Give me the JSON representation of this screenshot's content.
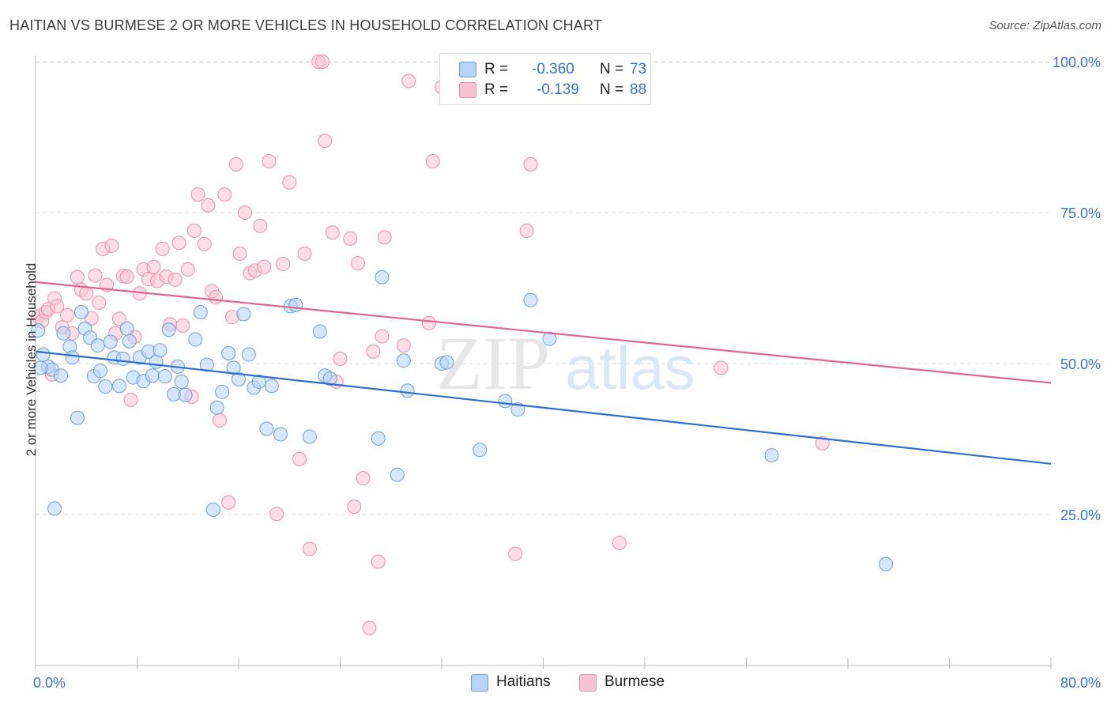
{
  "title": "HAITIAN VS BURMESE 2 OR MORE VEHICLES IN HOUSEHOLD CORRELATION CHART",
  "source": "Source: ZipAtlas.com",
  "watermark": {
    "zip": "ZIP",
    "atlas": "atlas"
  },
  "colors": {
    "haitians_fill": "#b7d3f5",
    "haitians_stroke": "#6d9fd9",
    "haitians_line": "#2f6fd0",
    "burmese_fill": "#f7c2d1",
    "burmese_stroke": "#e990ab",
    "burmese_line": "#e0658d",
    "tick_label": "#3a74c8",
    "grid": "#dddddd"
  },
  "legend_top": {
    "rows": [
      {
        "r_label": "R =",
        "r_value": "-0.360",
        "n_label": "N =",
        "n_value": "73"
      },
      {
        "r_label": "R =",
        "r_value": "-0.139",
        "n_label": "N =",
        "n_value": "88"
      }
    ]
  },
  "legend_bottom": {
    "haitians": "Haitians",
    "burmese": "Burmese"
  },
  "chart_data": {
    "type": "scatter",
    "title": "HAITIAN VS BURMESE 2 OR MORE VEHICLES IN HOUSEHOLD CORRELATION CHART",
    "xlabel": "",
    "ylabel": "2 or more Vehicles in Household",
    "xlim": [
      0,
      80
    ],
    "ylim": [
      0,
      105
    ],
    "x_tick_labels": [
      "0.0%",
      "80.0%"
    ],
    "y_ticks": [
      25,
      50,
      75,
      100
    ],
    "y_tick_labels": [
      "25.0%",
      "50.0%",
      "75.0%",
      "100.0%"
    ],
    "grid": true,
    "series": [
      {
        "name": "Haitians",
        "r": -0.36,
        "n": 73,
        "trend": {
          "x": [
            0,
            80
          ],
          "y": [
            52.0,
            33.4
          ]
        },
        "points": [
          [
            0.2,
            55.5
          ],
          [
            0.6,
            51.5
          ],
          [
            1.0,
            49.5
          ],
          [
            1.3,
            49.0
          ],
          [
            2.0,
            48.0
          ],
          [
            2.2,
            55.0
          ],
          [
            2.7,
            52.8
          ],
          [
            2.9,
            51.0
          ],
          [
            3.3,
            41.0
          ],
          [
            3.6,
            58.5
          ],
          [
            3.9,
            55.8
          ],
          [
            4.3,
            54.3
          ],
          [
            4.6,
            47.9
          ],
          [
            4.9,
            53.0
          ],
          [
            5.1,
            48.8
          ],
          [
            5.5,
            46.2
          ],
          [
            5.9,
            53.6
          ],
          [
            6.2,
            51.0
          ],
          [
            6.6,
            46.3
          ],
          [
            7.2,
            55.8
          ],
          [
            7.4,
            53.7
          ],
          [
            7.7,
            47.7
          ],
          [
            8.2,
            51.0
          ],
          [
            8.5,
            47.1
          ],
          [
            8.9,
            52.0
          ],
          [
            9.2,
            48.0
          ],
          [
            9.5,
            50.3
          ],
          [
            9.8,
            52.2
          ],
          [
            10.2,
            47.9
          ],
          [
            10.5,
            55.6
          ],
          [
            10.9,
            44.9
          ],
          [
            11.2,
            49.5
          ],
          [
            11.5,
            47.0
          ],
          [
            11.8,
            44.8
          ],
          [
            12.6,
            54.0
          ],
          [
            13.0,
            58.5
          ],
          [
            13.5,
            49.8
          ],
          [
            14.3,
            42.7
          ],
          [
            14.7,
            45.3
          ],
          [
            15.2,
            51.7
          ],
          [
            15.6,
            49.3
          ],
          [
            16.0,
            47.4
          ],
          [
            16.4,
            58.2
          ],
          [
            16.8,
            51.5
          ],
          [
            17.2,
            46.0
          ],
          [
            17.6,
            47.0
          ],
          [
            18.2,
            39.2
          ],
          [
            18.6,
            46.3
          ],
          [
            19.3,
            38.3
          ],
          [
            20.1,
            59.5
          ],
          [
            20.5,
            59.7
          ],
          [
            21.6,
            37.9
          ],
          [
            22.4,
            55.3
          ],
          [
            22.8,
            48.0
          ],
          [
            23.2,
            47.5
          ],
          [
            27.0,
            37.6
          ],
          [
            27.3,
            64.3
          ],
          [
            28.5,
            31.6
          ],
          [
            29.0,
            50.5
          ],
          [
            29.3,
            45.5
          ],
          [
            32.0,
            50.0
          ],
          [
            32.4,
            50.2
          ],
          [
            35.0,
            35.7
          ],
          [
            37.0,
            43.8
          ],
          [
            38.0,
            42.4
          ],
          [
            39.0,
            60.5
          ],
          [
            40.5,
            54.1
          ],
          [
            58.0,
            34.8
          ],
          [
            67.0,
            16.8
          ],
          [
            1.5,
            26.0
          ],
          [
            14.0,
            25.8
          ],
          [
            0.4,
            49.3
          ],
          [
            6.9,
            50.8
          ]
        ]
      },
      {
        "name": "Burmese",
        "r": -0.139,
        "n": 88,
        "trend": {
          "x": [
            0,
            80
          ],
          "y": [
            63.5,
            46.8
          ]
        },
        "points": [
          [
            0.2,
            57.8
          ],
          [
            0.5,
            57.0
          ],
          [
            0.8,
            58.5
          ],
          [
            1.0,
            59.0
          ],
          [
            1.3,
            48.2
          ],
          [
            1.5,
            60.8
          ],
          [
            1.7,
            59.5
          ],
          [
            2.1,
            56.0
          ],
          [
            2.5,
            58.0
          ],
          [
            2.9,
            55.0
          ],
          [
            3.3,
            64.3
          ],
          [
            3.6,
            62.2
          ],
          [
            4.0,
            61.6
          ],
          [
            4.4,
            57.5
          ],
          [
            4.7,
            64.6
          ],
          [
            5.0,
            60.1
          ],
          [
            5.3,
            69.0
          ],
          [
            5.6,
            63.0
          ],
          [
            6.0,
            69.5
          ],
          [
            6.3,
            55.0
          ],
          [
            6.6,
            57.4
          ],
          [
            6.9,
            64.5
          ],
          [
            7.2,
            64.4
          ],
          [
            7.5,
            44.0
          ],
          [
            7.8,
            54.4
          ],
          [
            8.2,
            61.6
          ],
          [
            8.5,
            65.6
          ],
          [
            8.9,
            64.0
          ],
          [
            9.3,
            66.0
          ],
          [
            9.6,
            63.7
          ],
          [
            10.0,
            69.0
          ],
          [
            10.3,
            64.4
          ],
          [
            10.6,
            56.5
          ],
          [
            11.0,
            63.9
          ],
          [
            11.3,
            70.0
          ],
          [
            11.6,
            56.3
          ],
          [
            12.0,
            65.6
          ],
          [
            12.3,
            44.5
          ],
          [
            12.5,
            72.0
          ],
          [
            12.8,
            78.0
          ],
          [
            13.3,
            69.8
          ],
          [
            13.6,
            76.2
          ],
          [
            13.9,
            62.0
          ],
          [
            14.2,
            61.0
          ],
          [
            14.5,
            40.6
          ],
          [
            14.9,
            78.0
          ],
          [
            15.2,
            27.0
          ],
          [
            15.5,
            57.7
          ],
          [
            15.8,
            83.0
          ],
          [
            16.1,
            68.2
          ],
          [
            16.5,
            75.0
          ],
          [
            16.9,
            65.0
          ],
          [
            17.3,
            65.4
          ],
          [
            17.7,
            72.8
          ],
          [
            18.0,
            66.0
          ],
          [
            18.4,
            83.5
          ],
          [
            19.0,
            25.1
          ],
          [
            19.5,
            66.5
          ],
          [
            20.0,
            80.0
          ],
          [
            20.8,
            34.2
          ],
          [
            21.2,
            68.2
          ],
          [
            21.6,
            19.3
          ],
          [
            22.3,
            100.0
          ],
          [
            22.6,
            100.0
          ],
          [
            22.8,
            86.9
          ],
          [
            23.4,
            71.7
          ],
          [
            23.7,
            47.0
          ],
          [
            24.0,
            50.8
          ],
          [
            24.8,
            70.7
          ],
          [
            25.1,
            26.3
          ],
          [
            25.4,
            66.6
          ],
          [
            25.8,
            31.0
          ],
          [
            26.3,
            6.2
          ],
          [
            26.6,
            52.0
          ],
          [
            27.0,
            17.2
          ],
          [
            27.3,
            54.5
          ],
          [
            27.5,
            70.9
          ],
          [
            29.0,
            53.0
          ],
          [
            29.4,
            96.8
          ],
          [
            31.0,
            56.7
          ],
          [
            31.3,
            83.5
          ],
          [
            32.0,
            95.8
          ],
          [
            37.8,
            18.5
          ],
          [
            38.7,
            72.0
          ],
          [
            39.0,
            83.0
          ],
          [
            46.0,
            20.3
          ],
          [
            54.0,
            49.3
          ],
          [
            62.0,
            36.8
          ]
        ]
      }
    ]
  }
}
